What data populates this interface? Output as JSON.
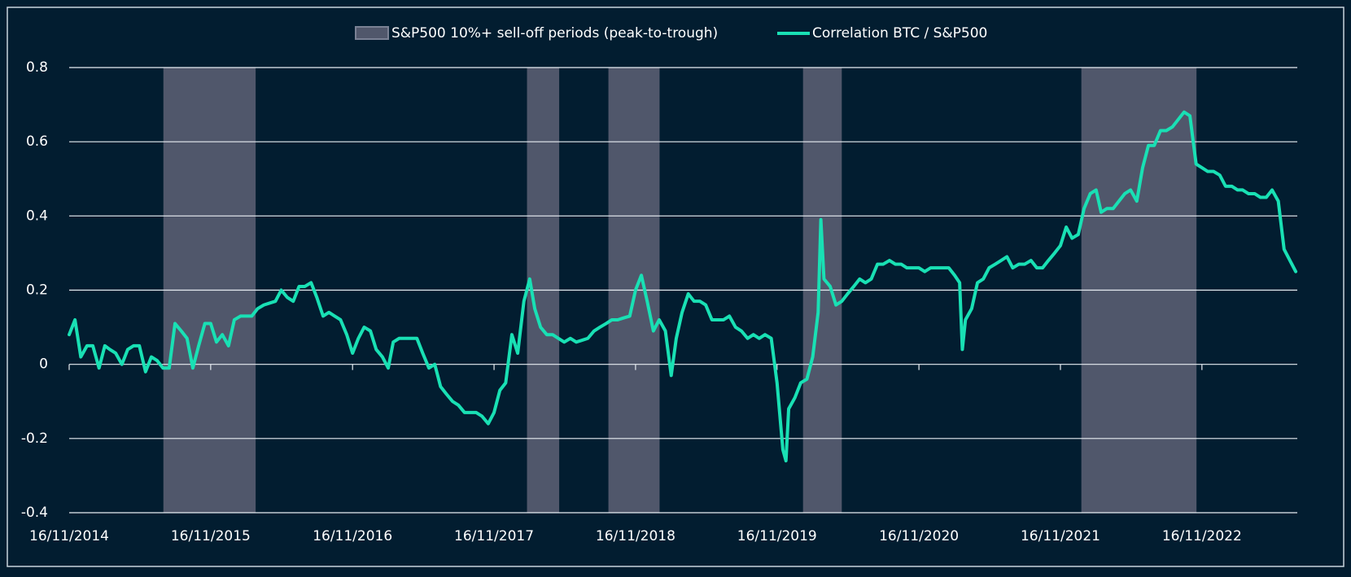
{
  "chart_data": {
    "type": "line",
    "x": [
      "2014-11-16",
      "2014-12-01",
      "2014-12-16",
      "2015-01-01",
      "2015-01-16",
      "2015-02-01",
      "2015-02-16",
      "2015-03-01",
      "2015-03-16",
      "2015-04-01",
      "2015-04-16",
      "2015-05-01",
      "2015-05-16",
      "2015-06-01",
      "2015-06-16",
      "2015-07-01",
      "2015-07-16",
      "2015-08-01",
      "2015-08-16",
      "2015-09-01",
      "2015-09-16",
      "2015-10-01",
      "2015-10-16",
      "2015-11-01",
      "2015-11-16",
      "2015-12-01",
      "2015-12-16",
      "2016-01-01",
      "2016-01-16",
      "2016-02-01",
      "2016-02-16",
      "2016-03-01",
      "2016-03-16",
      "2016-04-01",
      "2016-04-16",
      "2016-05-01",
      "2016-05-16",
      "2016-06-01",
      "2016-06-16",
      "2016-07-01",
      "2016-07-16",
      "2016-08-01",
      "2016-08-16",
      "2016-09-01",
      "2016-09-16",
      "2016-10-01",
      "2016-10-16",
      "2016-11-01",
      "2016-11-16",
      "2016-12-01",
      "2016-12-16",
      "2017-01-01",
      "2017-01-16",
      "2017-02-01",
      "2017-02-16",
      "2017-03-01",
      "2017-03-16",
      "2017-04-01",
      "2017-04-16",
      "2017-05-01",
      "2017-05-16",
      "2017-06-01",
      "2017-06-16",
      "2017-07-01",
      "2017-07-16",
      "2017-08-01",
      "2017-08-16",
      "2017-09-01",
      "2017-09-16",
      "2017-10-01",
      "2017-10-16",
      "2017-11-01",
      "2017-11-16",
      "2017-12-01",
      "2017-12-16",
      "2018-01-01",
      "2018-01-16",
      "2018-02-01",
      "2018-02-16",
      "2018-03-01",
      "2018-03-16",
      "2018-04-01",
      "2018-04-16",
      "2018-05-01",
      "2018-05-16",
      "2018-06-01",
      "2018-06-16",
      "2018-07-01",
      "2018-07-16",
      "2018-08-01",
      "2018-08-16",
      "2018-09-01",
      "2018-09-16",
      "2018-10-01",
      "2018-10-16",
      "2018-11-01",
      "2018-11-16",
      "2018-12-01",
      "2018-12-16",
      "2019-01-01",
      "2019-01-16",
      "2019-02-01",
      "2019-02-16",
      "2019-03-01",
      "2019-03-16",
      "2019-04-01",
      "2019-04-16",
      "2019-05-01",
      "2019-05-16",
      "2019-06-01",
      "2019-06-16",
      "2019-07-01",
      "2019-07-16",
      "2019-08-01",
      "2019-08-16",
      "2019-09-01",
      "2019-09-16",
      "2019-10-01",
      "2019-10-16",
      "2019-11-01",
      "2019-11-16",
      "2019-12-01",
      "2019-12-09",
      "2019-12-16",
      "2020-01-01",
      "2020-01-16",
      "2020-02-01",
      "2020-02-16",
      "2020-03-01",
      "2020-03-08",
      "2020-03-16",
      "2020-04-01",
      "2020-04-16",
      "2020-05-01",
      "2020-05-16",
      "2020-06-01",
      "2020-06-16",
      "2020-07-01",
      "2020-07-16",
      "2020-08-01",
      "2020-08-16",
      "2020-09-01",
      "2020-09-16",
      "2020-10-01",
      "2020-10-16",
      "2020-11-01",
      "2020-11-16",
      "2020-12-01",
      "2020-12-16",
      "2021-01-01",
      "2021-01-16",
      "2021-02-01",
      "2021-02-16",
      "2021-03-01",
      "2021-03-08",
      "2021-03-16",
      "2021-04-01",
      "2021-04-16",
      "2021-05-01",
      "2021-05-16",
      "2021-06-01",
      "2021-06-16",
      "2021-07-01",
      "2021-07-16",
      "2021-08-01",
      "2021-08-16",
      "2021-09-01",
      "2021-09-16",
      "2021-10-01",
      "2021-10-16",
      "2021-11-01",
      "2021-11-16",
      "2021-12-01",
      "2021-12-16",
      "2022-01-01",
      "2022-01-16",
      "2022-02-01",
      "2022-02-16",
      "2022-03-01",
      "2022-03-16",
      "2022-04-01",
      "2022-04-16",
      "2022-05-01",
      "2022-05-16",
      "2022-06-01",
      "2022-06-16",
      "2022-07-01",
      "2022-07-16",
      "2022-08-01",
      "2022-08-16",
      "2022-09-01",
      "2022-09-16",
      "2022-10-01",
      "2022-10-16",
      "2022-11-01",
      "2022-11-16",
      "2022-12-01",
      "2022-12-16",
      "2023-01-01",
      "2023-01-16",
      "2023-02-01",
      "2023-02-16",
      "2023-03-01",
      "2023-03-16",
      "2023-04-01",
      "2023-04-16",
      "2023-05-01",
      "2023-05-16",
      "2023-06-01",
      "2023-06-16",
      "2023-07-01",
      "2023-07-16"
    ],
    "series": [
      {
        "name": "Correlation BTC / S&P500",
        "color": "#19e0b4",
        "values": [
          0.08,
          0.12,
          0.02,
          0.05,
          0.05,
          -0.01,
          0.05,
          0.04,
          0.03,
          0.0,
          0.04,
          0.05,
          0.05,
          -0.02,
          0.02,
          0.01,
          -0.01,
          -0.01,
          0.11,
          0.09,
          0.07,
          -0.01,
          0.05,
          0.11,
          0.11,
          0.06,
          0.08,
          0.05,
          0.12,
          0.13,
          0.13,
          0.13,
          0.15,
          0.16,
          0.165,
          0.17,
          0.2,
          0.18,
          0.17,
          0.21,
          0.21,
          0.22,
          0.18,
          0.13,
          0.14,
          0.13,
          0.12,
          0.08,
          0.03,
          0.07,
          0.1,
          0.09,
          0.04,
          0.02,
          -0.01,
          0.06,
          0.07,
          0.07,
          0.07,
          0.07,
          0.03,
          -0.01,
          0.0,
          -0.06,
          -0.08,
          -0.1,
          -0.11,
          -0.13,
          -0.13,
          -0.13,
          -0.14,
          -0.16,
          -0.13,
          -0.07,
          -0.05,
          0.08,
          0.03,
          0.17,
          0.23,
          0.15,
          0.1,
          0.08,
          0.08,
          0.07,
          0.06,
          0.07,
          0.06,
          0.065,
          0.07,
          0.09,
          0.1,
          0.11,
          0.12,
          0.12,
          0.125,
          0.13,
          0.2,
          0.24,
          0.17,
          0.09,
          0.12,
          0.09,
          -0.03,
          0.07,
          0.14,
          0.19,
          0.17,
          0.17,
          0.16,
          0.12,
          0.12,
          0.12,
          0.13,
          0.1,
          0.09,
          0.07,
          0.08,
          0.07,
          0.08,
          0.07,
          -0.05,
          -0.23,
          -0.26,
          -0.12,
          -0.09,
          -0.05,
          -0.04,
          0.02,
          0.14,
          0.39,
          0.23,
          0.21,
          0.16,
          0.17,
          0.19,
          0.21,
          0.23,
          0.22,
          0.23,
          0.27,
          0.27,
          0.28,
          0.27,
          0.27,
          0.26,
          0.26,
          0.26,
          0.25,
          0.26,
          0.26,
          0.26,
          0.26,
          0.24,
          0.22,
          0.04,
          0.12,
          0.15,
          0.22,
          0.23,
          0.26,
          0.27,
          0.28,
          0.29,
          0.26,
          0.27,
          0.27,
          0.28,
          0.26,
          0.26,
          0.28,
          0.3,
          0.32,
          0.37,
          0.34,
          0.35,
          0.42,
          0.46,
          0.47,
          0.41,
          0.42,
          0.42,
          0.44,
          0.46,
          0.47,
          0.44,
          0.53,
          0.59,
          0.59,
          0.63,
          0.63,
          0.64,
          0.66,
          0.68,
          0.67,
          0.54,
          0.53,
          0.52,
          0.52,
          0.51,
          0.48,
          0.48,
          0.47,
          0.47,
          0.46,
          0.46,
          0.45,
          0.45,
          0.47,
          0.44,
          0.31,
          0.28,
          0.25
        ]
      }
    ],
    "shaded": {
      "name": "S&P500 10%+ sell-off periods (peak-to-trough)",
      "color": "#50576b",
      "periods": [
        [
          "2015-07-17",
          "2016-03-11"
        ],
        [
          "2018-02-09",
          "2018-05-03"
        ],
        [
          "2018-09-07",
          "2019-01-17"
        ],
        [
          "2020-01-22",
          "2020-05-01"
        ],
        [
          "2022-01-09",
          "2022-11-02"
        ]
      ]
    },
    "xlim": [
      "2014-11-16",
      "2023-07-20"
    ],
    "xticks": [
      {
        "value": "2014-11-16",
        "label": "16/11/2014"
      },
      {
        "value": "2015-11-16",
        "label": "16/11/2015"
      },
      {
        "value": "2016-11-16",
        "label": "16/11/2016"
      },
      {
        "value": "2017-11-16",
        "label": "16/11/2017"
      },
      {
        "value": "2018-11-16",
        "label": "16/11/2018"
      },
      {
        "value": "2019-11-16",
        "label": "16/11/2019"
      },
      {
        "value": "2020-11-16",
        "label": "16/11/2020"
      },
      {
        "value": "2021-11-16",
        "label": "16/11/2021"
      },
      {
        "value": "2022-11-16",
        "label": "16/11/2022"
      }
    ],
    "ylim": [
      -0.4,
      0.8
    ],
    "yticks": [
      -0.4,
      -0.2,
      0,
      0.2,
      0.4,
      0.6,
      0.8
    ],
    "grid": true,
    "legend": "top"
  }
}
